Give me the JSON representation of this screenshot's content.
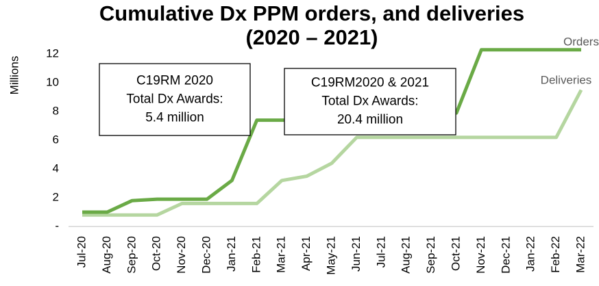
{
  "chart_data": {
    "type": "line",
    "title": [
      "Cumulative Dx PPM orders, and deliveries",
      "(2020 – 2021)"
    ],
    "y_label": "Millions",
    "categories": [
      "Jul-20",
      "Aug-20",
      "Sep-20",
      "Oct-20",
      "Nov-20",
      "Dec-20",
      "Jan-21",
      "Feb-21",
      "Mar-21",
      "Apr-21",
      "May-21",
      "Jun-21",
      "Jul-21",
      "Aug-21",
      "Sep-21",
      "Oct-21",
      "Nov-21",
      "Dec-21",
      "Jan-22",
      "Feb-22",
      "Mar-22"
    ],
    "series": [
      {
        "name": "Orders",
        "color": "#6aaa46",
        "values": [
          1.0,
          1.0,
          1.8,
          1.9,
          1.9,
          1.9,
          3.2,
          7.4,
          7.4,
          7.4,
          7.4,
          7.5,
          7.6,
          7.7,
          7.8,
          7.9,
          12.3,
          12.3,
          12.3,
          12.3,
          12.3
        ]
      },
      {
        "name": "Deliveries",
        "color": "#b5d6a0",
        "values": [
          0.8,
          0.8,
          0.8,
          0.8,
          1.6,
          1.6,
          1.6,
          1.6,
          3.2,
          3.5,
          4.4,
          6.2,
          6.2,
          6.2,
          6.2,
          6.2,
          6.2,
          6.2,
          6.2,
          6.2,
          9.5
        ]
      }
    ],
    "ylim": [
      0,
      13
    ],
    "yticks": [
      {
        "value": 0,
        "label": "-"
      },
      2,
      4,
      6,
      8,
      10,
      12
    ],
    "grid": false,
    "annotations": [
      {
        "lines": [
          "C19RM 2020",
          "Total Dx Awards:",
          "5.4 million"
        ]
      },
      {
        "lines": [
          "C19RM2020 & 2021",
          "Total Dx Awards:",
          "20.4 million"
        ]
      }
    ]
  }
}
